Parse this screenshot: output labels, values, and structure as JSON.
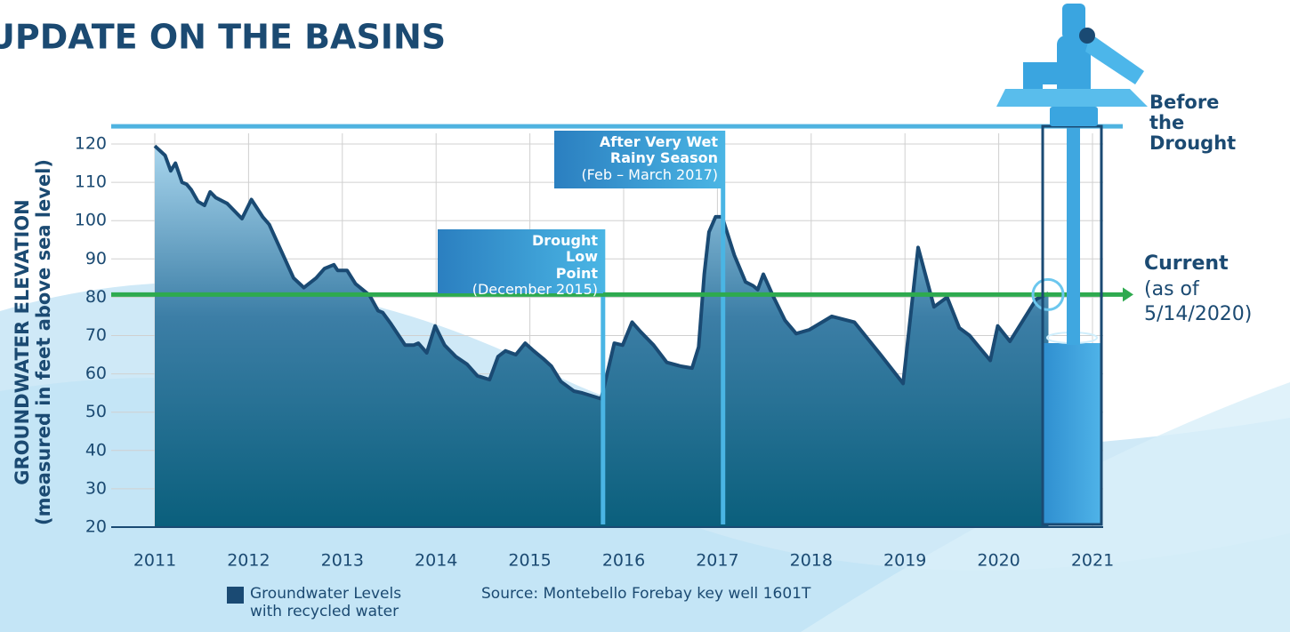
{
  "chart_data": {
    "type": "area",
    "title": "UPDATE ON THE BASINS",
    "y_label": "GROUNDWATER ELEVATION",
    "y_sublabel": "(measured in feet above sea level)",
    "source": "Source: Montebello Forebay key well 1601T",
    "xlim": [
      2011,
      2021
    ],
    "xticks": [
      2011,
      2012,
      2013,
      2014,
      2015,
      2016,
      2017,
      2018,
      2019,
      2020,
      2021
    ],
    "ylim": [
      20,
      120
    ],
    "yticks": [
      20,
      30,
      40,
      50,
      60,
      70,
      80,
      90,
      100,
      110,
      120
    ],
    "grid": true,
    "series": [
      {
        "name": "Groundwater Levels with recycled water",
        "color": "#1a4a73",
        "x": [
          2011.0,
          2011.11,
          2011.17,
          2011.22,
          2011.29,
          2011.34,
          2011.39,
          2011.46,
          2011.53,
          2011.59,
          2011.65,
          2011.77,
          2011.93,
          2012.03,
          2012.15,
          2012.22,
          2012.35,
          2012.48,
          2012.59,
          2012.72,
          2012.81,
          2012.91,
          2012.95,
          2013.05,
          2013.14,
          2013.29,
          2013.38,
          2013.43,
          2013.52,
          2013.67,
          2013.76,
          2013.81,
          2013.9,
          2013.99,
          2014.09,
          2014.21,
          2014.33,
          2014.44,
          2014.57,
          2014.66,
          2014.74,
          2014.85,
          2014.95,
          2015.04,
          2015.14,
          2015.23,
          2015.33,
          2015.47,
          2015.56,
          2015.76,
          2015.8,
          2015.9,
          2015.99,
          2016.09,
          2016.18,
          2016.32,
          2016.46,
          2016.61,
          2016.73,
          2016.8,
          2016.86,
          2016.91,
          2016.98,
          2017.05,
          2017.18,
          2017.3,
          2017.38,
          2017.43,
          2017.49,
          2017.6,
          2017.72,
          2017.84,
          2017.98,
          2018.22,
          2018.46,
          2018.74,
          2018.98,
          2019.14,
          2019.31,
          2019.45,
          2019.58,
          2019.69,
          2019.79,
          2019.91,
          2019.99,
          2020.12,
          2020.26,
          2020.4,
          2020.53
        ],
        "values": [
          119.5,
          117,
          113,
          115,
          110,
          109.5,
          108,
          105,
          104,
          107.5,
          106,
          104.5,
          100.5,
          105.5,
          101,
          99,
          92,
          85,
          82.5,
          85,
          87.5,
          88.5,
          87,
          87,
          83.5,
          80.5,
          76.5,
          76,
          73,
          67.5,
          67.5,
          68,
          65.5,
          72.5,
          67.5,
          64.5,
          62.5,
          59.5,
          58.5,
          64.5,
          66,
          65,
          68,
          66,
          64,
          62,
          58,
          55.5,
          55,
          53.5,
          57.5,
          68,
          67.5,
          73.5,
          71,
          67.5,
          63,
          62,
          61.5,
          67,
          86,
          97,
          101,
          101,
          91,
          84,
          83,
          82,
          86,
          80,
          74,
          70.5,
          71.5,
          75,
          73.5,
          65,
          57.5,
          93,
          77.5,
          80,
          72,
          70,
          67,
          63.5,
          72.5,
          68.5,
          74,
          79.5,
          81
        ]
      }
    ],
    "reference_lines": [
      {
        "label": "Before the Drought",
        "value": 124.6,
        "color": "#4fb3e0"
      },
      {
        "label": "Current",
        "sublabel": "(as of 5/14/2020)",
        "value": 80.7,
        "color": "#2eaa4f"
      }
    ],
    "markers": [
      {
        "label": "Drought Low Point",
        "sublabel": "(December 2015)",
        "x": 2015.78
      },
      {
        "label": "After Very Wet Rainy Season",
        "sublabel": "(Feb – March 2017)",
        "x": 2017.06
      }
    ]
  }
}
